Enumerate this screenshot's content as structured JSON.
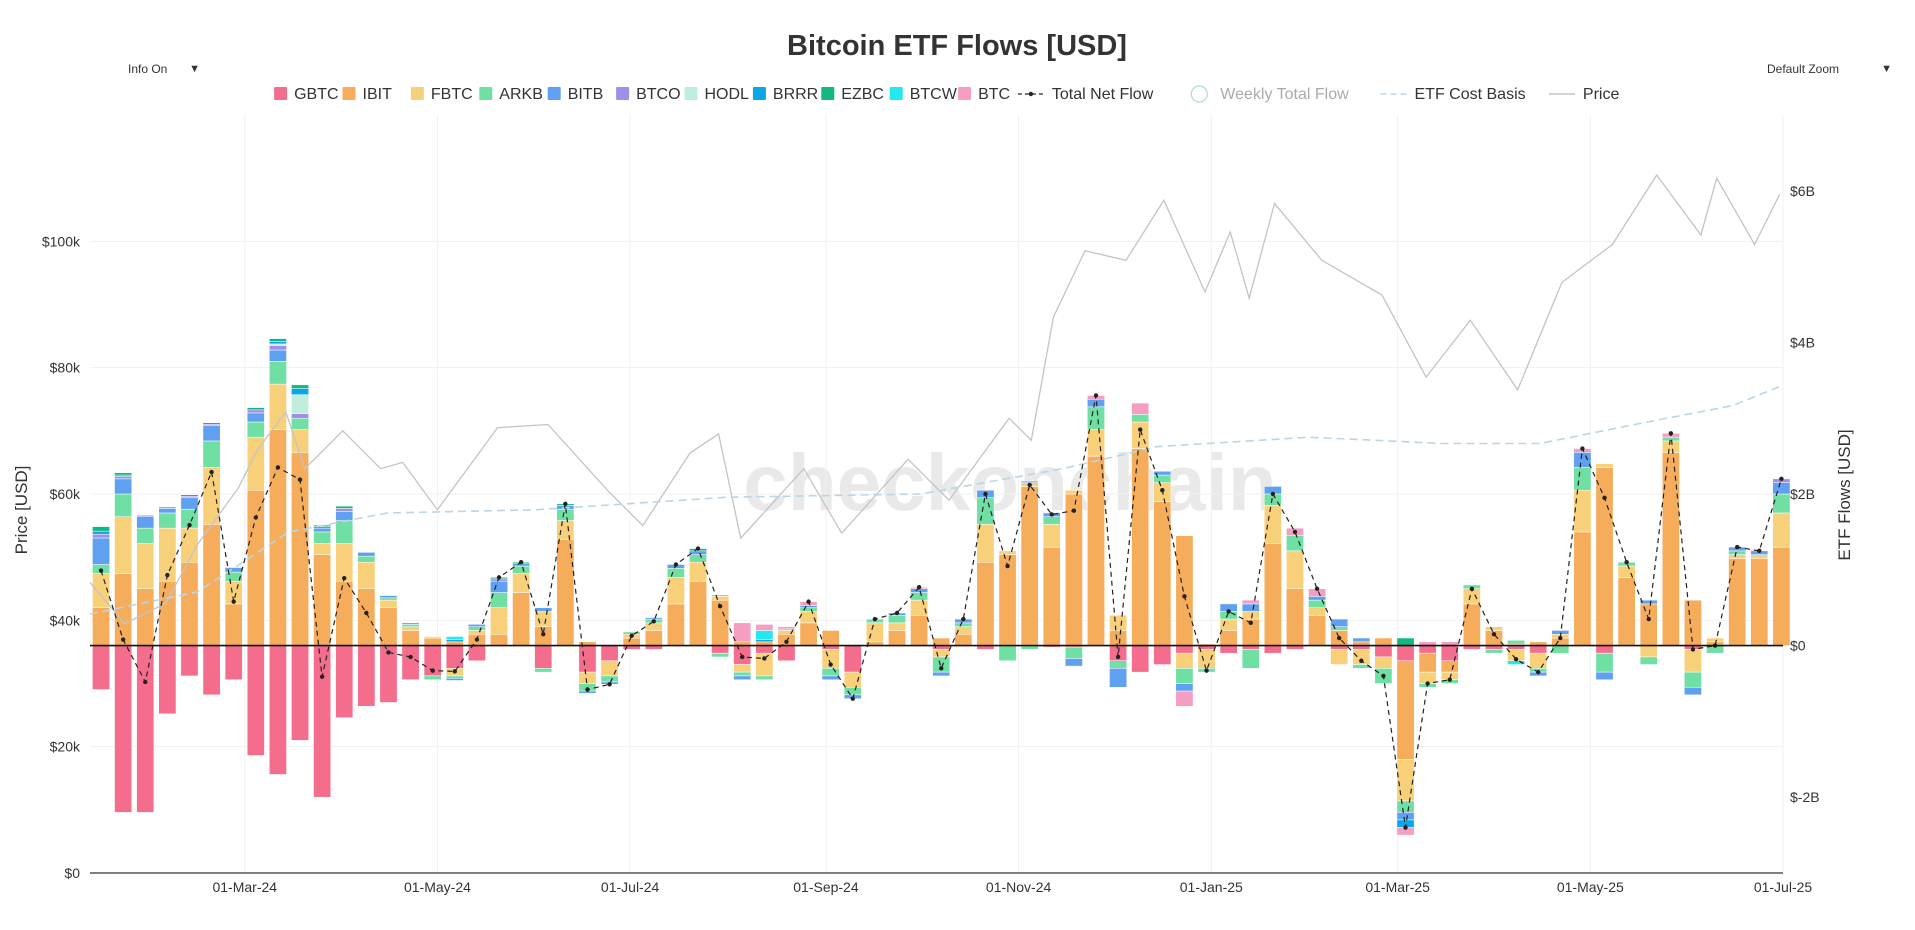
{
  "controls": {
    "info": "Info On",
    "zoom": "Default Zoom",
    "dropdown_arrow": "▼"
  },
  "watermark": "checkonchain",
  "colors": {
    "GBTC": "#f46d8c",
    "IBIT": "#f5ad5c",
    "FBTC": "#f9d07a",
    "ARKB": "#6fdfa3",
    "BITB": "#5fa0f0",
    "BTCO": "#a08ee8",
    "HODL": "#bfeedd",
    "BRRR": "#0aa6e8",
    "EZBC": "#11b881",
    "BTCW": "#22e8f0",
    "BTC": "#f59ec2",
    "net_flow": "#222222",
    "weekly": "#a6e0cc",
    "cost_basis": "#b9d6e6",
    "price": "#c4c4c4"
  },
  "chart_data": {
    "type": "bar",
    "title": "Bitcoin ETF Flows [USD]",
    "ylabel": "Price [USD]",
    "y2label": "ETF Flows [USD]",
    "x_start": "2024-01-12",
    "x_end": "2025-07-01",
    "x_ticks": [
      {
        "date": "2024-03-01",
        "label": "01-Mar-24"
      },
      {
        "date": "2024-05-01",
        "label": "01-May-24"
      },
      {
        "date": "2024-07-01",
        "label": "01-Jul-24"
      },
      {
        "date": "2024-09-01",
        "label": "01-Sep-24"
      },
      {
        "date": "2024-11-01",
        "label": "01-Nov-24"
      },
      {
        "date": "2025-01-01",
        "label": "01-Jan-25"
      },
      {
        "date": "2025-03-01",
        "label": "01-Mar-25"
      },
      {
        "date": "2025-05-01",
        "label": "01-May-25"
      },
      {
        "date": "2025-07-01",
        "label": "01-Jul-25"
      }
    ],
    "ylim_price": [
      0,
      120000
    ],
    "price_ticks": [
      {
        "value": 0,
        "label": "$0"
      },
      {
        "value": 20000,
        "label": "$20k"
      },
      {
        "value": 40000,
        "label": "$40k"
      },
      {
        "value": 60000,
        "label": "$60k"
      },
      {
        "value": 80000,
        "label": "$80k"
      },
      {
        "value": 100000,
        "label": "$100k"
      }
    ],
    "ylim_flow": [
      -3,
      7
    ],
    "flow_ticks": [
      {
        "value": -2,
        "label": "$-2B"
      },
      {
        "value": 0,
        "label": "$0"
      },
      {
        "value": 2,
        "label": "$2B"
      },
      {
        "value": 4,
        "label": "$4B"
      },
      {
        "value": 6,
        "label": "$6B"
      }
    ],
    "flow_unit": "USD billions",
    "legend_position": "top",
    "legend": [
      {
        "name": "GBTC",
        "kind": "bar"
      },
      {
        "name": "IBIT",
        "kind": "bar"
      },
      {
        "name": "FBTC",
        "kind": "bar"
      },
      {
        "name": "ARKB",
        "kind": "bar"
      },
      {
        "name": "BITB",
        "kind": "bar"
      },
      {
        "name": "BTCO",
        "kind": "bar"
      },
      {
        "name": "HODL",
        "kind": "bar"
      },
      {
        "name": "BRRR",
        "kind": "bar"
      },
      {
        "name": "EZBC",
        "kind": "bar"
      },
      {
        "name": "BTCW",
        "kind": "bar"
      },
      {
        "name": "BTC",
        "kind": "bar"
      },
      {
        "name": "Total Net Flow",
        "kind": "line-marker"
      },
      {
        "name": "Weekly Total Flow",
        "kind": "circle-off"
      },
      {
        "name": "ETF Cost Basis",
        "kind": "dash"
      },
      {
        "name": "Price",
        "kind": "line"
      }
    ],
    "funds": [
      "GBTC",
      "IBIT",
      "FBTC",
      "ARKB",
      "BITB",
      "BTCO",
      "HODL",
      "BRRR",
      "EZBC",
      "BTCW",
      "BTC"
    ],
    "weeks": [
      {
        "date": "2024-01-12",
        "GBTC": -0.58,
        "IBIT": 0.5,
        "FBTC": 0.45,
        "ARKB": 0.12,
        "BITB": 0.35,
        "BTCO": 0.05,
        "BRRR": 0.04,
        "EZBC": 0.06
      },
      {
        "date": "2024-01-19",
        "GBTC": -2.2,
        "IBIT": 0.95,
        "FBTC": 0.75,
        "ARKB": 0.3,
        "BITB": 0.2,
        "BTCO": 0.03,
        "BRRR": 0.02,
        "EZBC": 0.03
      },
      {
        "date": "2024-01-26",
        "GBTC": -2.2,
        "IBIT": 0.75,
        "FBTC": 0.6,
        "ARKB": 0.2,
        "BITB": 0.15,
        "BTCO": 0.02
      },
      {
        "date": "2024-02-02",
        "GBTC": -0.9,
        "IBIT": 0.85,
        "FBTC": 0.7,
        "ARKB": 0.2,
        "BITB": 0.06,
        "BTCO": 0.02
      },
      {
        "date": "2024-02-09",
        "GBTC": -0.4,
        "IBIT": 1.1,
        "FBTC": 0.45,
        "ARKB": 0.25,
        "BITB": 0.15,
        "BTCO": 0.02,
        "EZBC": 0.02
      },
      {
        "date": "2024-02-16",
        "GBTC": -0.65,
        "IBIT": 1.6,
        "FBTC": 0.75,
        "ARKB": 0.35,
        "BITB": 0.2,
        "BTCO": 0.02,
        "EZBC": 0.02
      },
      {
        "date": "2024-02-23",
        "GBTC": -0.45,
        "IBIT": 0.55,
        "FBTC": 0.3,
        "ARKB": 0.12,
        "BITB": 0.06
      },
      {
        "date": "2024-03-01",
        "GBTC": -1.45,
        "IBIT": 2.05,
        "FBTC": 0.7,
        "ARKB": 0.2,
        "BITB": 0.12,
        "BTCO": 0.04,
        "EZBC": 0.03
      },
      {
        "date": "2024-03-08",
        "GBTC": -1.7,
        "IBIT": 2.85,
        "FBTC": 0.6,
        "ARKB": 0.3,
        "BITB": 0.15,
        "BTCO": 0.06,
        "BRRR": 0.03,
        "HODL": 0.02,
        "EZBC": 0.04
      },
      {
        "date": "2024-03-15",
        "GBTC": -1.25,
        "IBIT": 2.55,
        "FBTC": 0.3,
        "ARKB": 0.15,
        "HODL": 0.25,
        "BTCO": 0.06,
        "BRRR": 0.08,
        "EZBC": 0.05
      },
      {
        "date": "2024-03-22",
        "GBTC": -2.0,
        "IBIT": 1.2,
        "FBTC": 0.15,
        "ARKB": 0.15,
        "BITB": 0.05,
        "BRRR": 0.02,
        "EZBC": 0.02
      },
      {
        "date": "2024-03-29",
        "GBTC": -0.95,
        "IBIT": 0.85,
        "FBTC": 0.5,
        "ARKB": 0.3,
        "BITB": 0.12,
        "BTCO": 0.04,
        "EZBC": 0.03
      },
      {
        "date": "2024-04-05",
        "GBTC": -0.8,
        "IBIT": 0.75,
        "FBTC": 0.35,
        "ARKB": 0.08,
        "BITB": 0.05
      },
      {
        "date": "2024-04-12",
        "GBTC": -0.75,
        "IBIT": 0.5,
        "FBTC": 0.1,
        "ARKB": 0.03,
        "BITB": 0.03
      },
      {
        "date": "2024-04-19",
        "GBTC": -0.45,
        "IBIT": 0.2,
        "FBTC": 0.05,
        "ARKB": 0.03,
        "BITB": 0.02
      },
      {
        "date": "2024-04-26",
        "GBTC": -0.4,
        "IBIT": 0.1,
        "FBTC": 0.02,
        "ARKB": -0.05
      },
      {
        "date": "2024-05-03",
        "GBTC": -0.3,
        "IBIT": 0.05,
        "FBTC": -0.1,
        "ARKB": -0.03,
        "BITB": -0.03,
        "BRRR": 0.03,
        "BTCW": 0.04
      },
      {
        "date": "2024-05-10",
        "GBTC": -0.2,
        "IBIT": 0.15,
        "FBTC": 0.05,
        "ARKB": 0.05,
        "BITB": 0.03
      },
      {
        "date": "2024-05-17",
        "IBIT": 0.15,
        "FBTC": 0.35,
        "ARKB": 0.2,
        "BITB": 0.15,
        "BTCO": 0.03,
        "EZBC": 0.02
      },
      {
        "date": "2024-05-24",
        "IBIT": 0.7,
        "FBTC": 0.25,
        "ARKB": 0.1,
        "BITB": 0.03,
        "EZBC": 0.02
      },
      {
        "date": "2024-05-31",
        "GBTC": -0.3,
        "IBIT": 0.25,
        "FBTC": 0.2,
        "ARKB": -0.05,
        "BITB": 0.05
      },
      {
        "date": "2024-06-07",
        "IBIT": 1.4,
        "FBTC": 0.25,
        "ARKB": 0.15,
        "BITB": 0.05,
        "EZBC": 0.02
      },
      {
        "date": "2024-06-14",
        "GBTC": -0.35,
        "IBIT": 0.05,
        "FBTC": -0.15,
        "ARKB": -0.1,
        "BITB": -0.03
      },
      {
        "date": "2024-06-21",
        "GBTC": -0.2,
        "FBTC": -0.2,
        "ARKB": -0.08,
        "BITB": -0.03
      },
      {
        "date": "2024-06-28",
        "GBTC": -0.05,
        "IBIT": 0.1,
        "FBTC": 0.05,
        "ARKB": 0.03
      },
      {
        "date": "2024-07-05",
        "GBTC": -0.05,
        "IBIT": 0.2,
        "FBTC": 0.1,
        "ARKB": 0.05,
        "BITB": 0.02
      },
      {
        "date": "2024-07-12",
        "IBIT": 0.55,
        "FBTC": 0.35,
        "ARKB": 0.12,
        "BITB": 0.05
      },
      {
        "date": "2024-07-19",
        "IBIT": 0.85,
        "FBTC": 0.25,
        "ARKB": 0.1,
        "BITB": 0.05,
        "EZBC": 0.03
      },
      {
        "date": "2024-07-26",
        "GBTC": -0.1,
        "IBIT": 0.6,
        "FBTC": 0.05,
        "ARKB": -0.05,
        "BTC": 0.02
      },
      {
        "date": "2024-08-02",
        "GBTC": -0.25,
        "IBIT": 0.05,
        "FBTC": -0.1,
        "ARKB": -0.05,
        "BITB": -0.05,
        "BTC": 0.25
      },
      {
        "date": "2024-08-09",
        "GBTC": -0.1,
        "IBIT": 0.05,
        "FBTC": -0.3,
        "ARKB": -0.05,
        "BTCW": 0.12,
        "BRRR": 0.03,
        "BTC": 0.08
      },
      {
        "date": "2024-08-16",
        "GBTC": -0.2,
        "IBIT": 0.15,
        "FBTC": 0.05,
        "ARKB": 0.02,
        "BTC": 0.03
      },
      {
        "date": "2024-08-23",
        "IBIT": 0.3,
        "FBTC": 0.15,
        "ARKB": 0.05,
        "BITB": 0.03,
        "BTC": 0.05
      },
      {
        "date": "2024-08-30",
        "GBTC": -0.05,
        "IBIT": 0.2,
        "FBTC": -0.25,
        "ARKB": -0.1,
        "BITB": -0.05
      },
      {
        "date": "2024-09-06",
        "GBTC": -0.35,
        "FBTC": -0.2,
        "ARKB": -0.1,
        "BITB": -0.05
      },
      {
        "date": "2024-09-13",
        "IBIT": 0.05,
        "FBTC": 0.25,
        "ARKB": 0.05
      },
      {
        "date": "2024-09-20",
        "IBIT": 0.2,
        "FBTC": 0.1,
        "ARKB": 0.1,
        "BITB": 0.03
      },
      {
        "date": "2024-09-27",
        "IBIT": 0.4,
        "FBTC": 0.2,
        "ARKB": 0.1,
        "BITB": 0.05,
        "BTC": 0.02
      },
      {
        "date": "2024-10-04",
        "GBTC": -0.05,
        "IBIT": 0.1,
        "FBTC": -0.1,
        "ARKB": -0.2,
        "BITB": -0.05
      },
      {
        "date": "2024-10-11",
        "IBIT": 0.15,
        "FBTC": 0.1,
        "ARKB": 0.05,
        "BITB": 0.05
      },
      {
        "date": "2024-10-18",
        "GBTC": -0.05,
        "IBIT": 1.1,
        "FBTC": 0.5,
        "ARKB": 0.35,
        "BITB": 0.1
      },
      {
        "date": "2024-10-25",
        "IBIT": 1.2,
        "FBTC": 0.05,
        "ARKB": -0.2
      },
      {
        "date": "2024-11-01",
        "IBIT": 2.1,
        "FBTC": 0.05,
        "ARKB": -0.05,
        "BITB": 0.02
      },
      {
        "date": "2024-11-08",
        "GBTC": -0.02,
        "IBIT": 1.3,
        "FBTC": 0.3,
        "ARKB": 0.1,
        "BITB": 0.05
      },
      {
        "date": "2024-11-15",
        "GBTC": -0.02,
        "IBIT": 2.0,
        "FBTC": 0.05,
        "ARKB": -0.15,
        "BITB": -0.1
      },
      {
        "date": "2024-11-22",
        "IBIT": 2.5,
        "FBTC": 0.35,
        "ARKB": 0.3,
        "BITB": 0.1,
        "BTC": 0.05
      },
      {
        "date": "2024-11-29",
        "GBTC": -0.2,
        "IBIT": 0.2,
        "FBTC": 0.2,
        "ARKB": -0.1,
        "BITB": -0.25
      },
      {
        "date": "2024-12-06",
        "GBTC": -0.35,
        "IBIT": 2.6,
        "FBTC": 0.35,
        "ARKB": 0.1,
        "BTC": 0.15
      },
      {
        "date": "2024-12-13",
        "GBTC": -0.25,
        "IBIT": 1.9,
        "FBTC": 0.25,
        "ARKB": 0.1,
        "BITB": 0.05
      },
      {
        "date": "2024-12-20",
        "GBTC": -0.1,
        "IBIT": 1.45,
        "FBTC": -0.2,
        "ARKB": -0.2,
        "BITB": -0.1,
        "BTC": -0.2
      },
      {
        "date": "2024-12-27",
        "GBTC": -0.05,
        "IBIT": 0.02,
        "FBTC": -0.25,
        "ARKB": -0.05
      },
      {
        "date": "2025-01-03",
        "GBTC": -0.1,
        "IBIT": 0.2,
        "FBTC": 0.15,
        "ARKB": 0.1,
        "BITB": 0.1
      },
      {
        "date": "2025-01-10",
        "GBTC": -0.05,
        "IBIT": 0.35,
        "FBTC": 0.1,
        "ARKB": -0.25,
        "BITB": 0.1,
        "BTC": 0.05
      },
      {
        "date": "2025-01-17",
        "GBTC": -0.1,
        "IBIT": 1.35,
        "FBTC": 0.5,
        "ARKB": 0.15,
        "BITB": 0.1
      },
      {
        "date": "2025-01-24",
        "GBTC": -0.05,
        "IBIT": 0.75,
        "FBTC": 0.5,
        "ARKB": 0.2,
        "BTC": 0.1
      },
      {
        "date": "2025-01-31",
        "IBIT": 0.4,
        "FBTC": 0.1,
        "ARKB": 0.1,
        "BITB": 0.05,
        "BTC": 0.1
      },
      {
        "date": "2025-02-07",
        "GBTC": -0.05,
        "IBIT": 0.2,
        "FBTC": -0.2,
        "ARKB": 0.05,
        "BITB": 0.1
      },
      {
        "date": "2025-02-14",
        "GBTC": -0.05,
        "IBIT": 0.05,
        "FBTC": -0.2,
        "ARKB": -0.05,
        "BITB": 0.05
      },
      {
        "date": "2025-02-21",
        "GBTC": -0.15,
        "IBIT": 0.1,
        "FBTC": -0.15,
        "ARKB": -0.2
      },
      {
        "date": "2025-02-28",
        "GBTC": -0.2,
        "IBIT": -1.3,
        "FBTC": -0.55,
        "ARKB": -0.15,
        "BITB": -0.1,
        "BRRR": -0.1,
        "BTC": -0.1,
        "EZBC": 0.1
      },
      {
        "date": "2025-03-07",
        "GBTC": -0.1,
        "IBIT": -0.25,
        "FBTC": -0.15,
        "ARKB": -0.05,
        "BTC": 0.05
      },
      {
        "date": "2025-03-14",
        "GBTC": -0.2,
        "IBIT": -0.15,
        "FBTC": -0.1,
        "ARKB": -0.05,
        "BTC": 0.05
      },
      {
        "date": "2025-03-21",
        "GBTC": -0.05,
        "IBIT": 0.55,
        "FBTC": 0.2,
        "ARKB": 0.05
      },
      {
        "date": "2025-03-28",
        "GBTC": -0.05,
        "IBIT": 0.2,
        "FBTC": 0.05,
        "ARKB": -0.05
      },
      {
        "date": "2025-04-04",
        "GBTC": -0.05,
        "IBIT": 0.02,
        "FBTC": -0.15,
        "ARKB": 0.05,
        "BTCW": -0.05
      },
      {
        "date": "2025-04-11",
        "GBTC": -0.1,
        "IBIT": 0.05,
        "FBTC": -0.2,
        "ARKB": -0.05,
        "BITB": -0.05
      },
      {
        "date": "2025-04-18",
        "IBIT": 0.1,
        "FBTC": 0.05,
        "ARKB": -0.1,
        "BITB": 0.05
      },
      {
        "date": "2025-04-25",
        "IBIT": 1.5,
        "FBTC": 0.55,
        "ARKB": 0.3,
        "BITB": 0.2,
        "BTC": 0.05
      },
      {
        "date": "2025-05-02",
        "IBIT": 2.35,
        "FBTC": 0.05,
        "ARKB": -0.25,
        "GBTC": -0.1,
        "BITB": -0.1
      },
      {
        "date": "2025-05-09",
        "IBIT": 0.9,
        "FBTC": 0.15,
        "ARKB": 0.05
      },
      {
        "date": "2025-05-16",
        "IBIT": 0.55,
        "FBTC": -0.15,
        "ARKB": -0.1,
        "BITB": 0.05
      },
      {
        "date": "2025-05-23",
        "IBIT": 2.55,
        "FBTC": 0.15,
        "ARKB": 0.05,
        "BTC": 0.05
      },
      {
        "date": "2025-05-30",
        "IBIT": 0.6,
        "FBTC": -0.3,
        "ARKB": -0.2,
        "BITB": -0.1,
        "GBTC": -0.05
      },
      {
        "date": "2025-06-06",
        "IBIT": 0.05,
        "FBTC": 0.05,
        "ARKB": -0.1
      },
      {
        "date": "2025-06-13",
        "IBIT": 1.15,
        "FBTC": 0.05,
        "ARKB": 0.05,
        "BITB": 0.05
      },
      {
        "date": "2025-06-20",
        "IBIT": 1.15,
        "FBTC": 0.05,
        "BITB": 0.05
      },
      {
        "date": "2025-06-27",
        "IBIT": 1.3,
        "FBTC": 0.45,
        "ARKB": 0.25,
        "BITB": 0.15,
        "BTCO": 0.05
      }
    ],
    "price": [
      [
        "2024-01-12",
        46000
      ],
      [
        "2024-01-23",
        39500
      ],
      [
        "2024-02-05",
        42700
      ],
      [
        "2024-02-15",
        52000
      ],
      [
        "2024-02-28",
        61000
      ],
      [
        "2024-03-05",
        67000
      ],
      [
        "2024-03-14",
        73000
      ],
      [
        "2024-03-20",
        64000
      ],
      [
        "2024-04-01",
        70000
      ],
      [
        "2024-04-13",
        64000
      ],
      [
        "2024-04-20",
        65000
      ],
      [
        "2024-05-01",
        57500
      ],
      [
        "2024-05-20",
        70500
      ],
      [
        "2024-06-05",
        71000
      ],
      [
        "2024-06-24",
        60500
      ],
      [
        "2024-07-05",
        55000
      ],
      [
        "2024-07-20",
        66500
      ],
      [
        "2024-07-29",
        69500
      ],
      [
        "2024-08-05",
        53000
      ],
      [
        "2024-08-25",
        64000
      ],
      [
        "2024-09-06",
        53800
      ],
      [
        "2024-09-27",
        65500
      ],
      [
        "2024-10-10",
        59000
      ],
      [
        "2024-10-29",
        72000
      ],
      [
        "2024-11-05",
        68500
      ],
      [
        "2024-11-12",
        88000
      ],
      [
        "2024-11-22",
        98500
      ],
      [
        "2024-12-05",
        97000
      ],
      [
        "2024-12-17",
        106500
      ],
      [
        "2024-12-30",
        92000
      ],
      [
        "2025-01-07",
        101500
      ],
      [
        "2025-01-13",
        91000
      ],
      [
        "2025-01-21",
        106000
      ],
      [
        "2025-02-05",
        97000
      ],
      [
        "2025-02-24",
        91500
      ],
      [
        "2025-03-10",
        78500
      ],
      [
        "2025-03-24",
        87500
      ],
      [
        "2025-04-08",
        76500
      ],
      [
        "2025-04-22",
        93500
      ],
      [
        "2025-05-08",
        99500
      ],
      [
        "2025-05-22",
        110500
      ],
      [
        "2025-06-05",
        101000
      ],
      [
        "2025-06-10",
        110000
      ],
      [
        "2025-06-22",
        99500
      ],
      [
        "2025-06-30",
        107500
      ]
    ],
    "cost_basis": [
      [
        "2024-01-12",
        41000
      ],
      [
        "2024-02-15",
        44500
      ],
      [
        "2024-03-15",
        54000
      ],
      [
        "2024-04-15",
        57000
      ],
      [
        "2024-06-01",
        57500
      ],
      [
        "2024-08-01",
        59500
      ],
      [
        "2024-10-01",
        60000
      ],
      [
        "2024-11-15",
        64000
      ],
      [
        "2024-12-15",
        67500
      ],
      [
        "2025-02-01",
        69000
      ],
      [
        "2025-03-15",
        68000
      ],
      [
        "2025-04-15",
        68000
      ],
      [
        "2025-05-15",
        71000
      ],
      [
        "2025-06-15",
        74000
      ],
      [
        "2025-06-30",
        77000
      ]
    ]
  }
}
